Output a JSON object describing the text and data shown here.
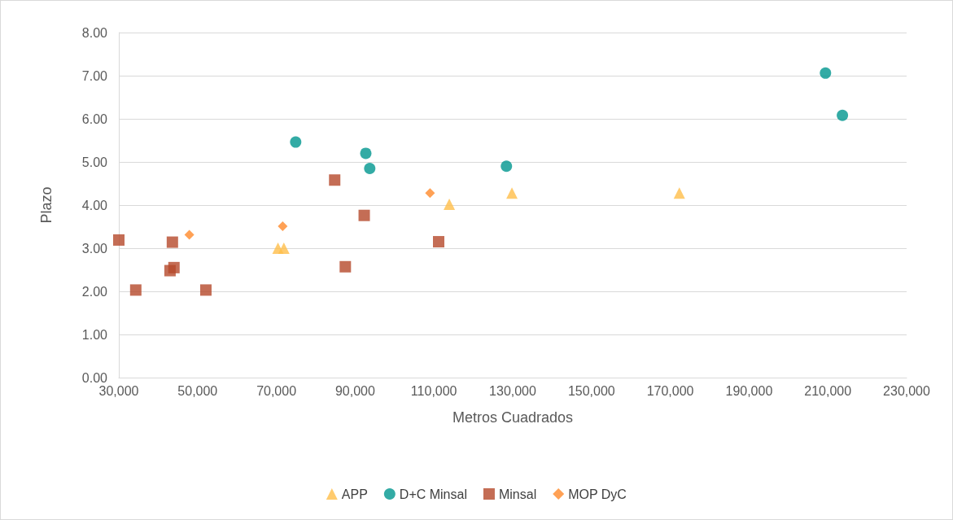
{
  "chart_data": {
    "type": "scatter",
    "xlabel": "Metros Cuadrados",
    "ylabel": "Plazo",
    "xlim": [
      30000,
      230000
    ],
    "xticks": [
      {
        "value": 30000,
        "label": "30,000"
      },
      {
        "value": 50000,
        "label": "50,000"
      },
      {
        "value": 70000,
        "label": "70,000"
      },
      {
        "value": 90000,
        "label": "90,000"
      },
      {
        "value": 110000,
        "label": "110,000"
      },
      {
        "value": 130000,
        "label": "130,000"
      },
      {
        "value": 150000,
        "label": "150,000"
      },
      {
        "value": 170000,
        "label": "170,000"
      },
      {
        "value": 190000,
        "label": "190,000"
      },
      {
        "value": 210000,
        "label": "210,000"
      },
      {
        "value": 230000,
        "label": "230,000"
      }
    ],
    "ylim": [
      0,
      8
    ],
    "yticks": [
      {
        "value": 0,
        "label": "0.00"
      },
      {
        "value": 1,
        "label": "1.00"
      },
      {
        "value": 2,
        "label": "2.00"
      },
      {
        "value": 3,
        "label": "3.00"
      },
      {
        "value": 4,
        "label": "4.00"
      },
      {
        "value": 5,
        "label": "5.00"
      },
      {
        "value": 6,
        "label": "6.00"
      },
      {
        "value": 7,
        "label": "7.00"
      },
      {
        "value": 8,
        "label": "8.00"
      }
    ],
    "grid": "y",
    "legend": "bottom",
    "series": [
      {
        "name": "APP",
        "color": "#ffbe4a",
        "marker": "triangle",
        "x": [
          70400,
          71900,
          113900,
          129800,
          172300
        ],
        "values": [
          3.0,
          3.0,
          4.02,
          4.28,
          4.28
        ]
      },
      {
        "name": "D+C Minsal",
        "color": "#00968f",
        "marker": "circle",
        "x": [
          74900,
          92700,
          93700,
          128400,
          209400,
          213700
        ],
        "values": [
          5.46,
          5.2,
          4.85,
          4.9,
          7.06,
          6.08
        ]
      },
      {
        "name": "Minsal",
        "color": "#b5492a",
        "marker": "square",
        "x": [
          30000,
          34300,
          43000,
          43600,
          44000,
          52100,
          84800,
          87500,
          92300,
          111200
        ],
        "values": [
          3.19,
          2.03,
          2.48,
          3.14,
          2.55,
          2.03,
          4.58,
          2.57,
          3.76,
          3.15
        ]
      },
      {
        "name": "MOP DyC",
        "color": "#ff8a2a",
        "marker": "diamond",
        "x": [
          47900,
          71600,
          109000
        ],
        "values": [
          3.31,
          3.51,
          4.28
        ]
      }
    ]
  }
}
